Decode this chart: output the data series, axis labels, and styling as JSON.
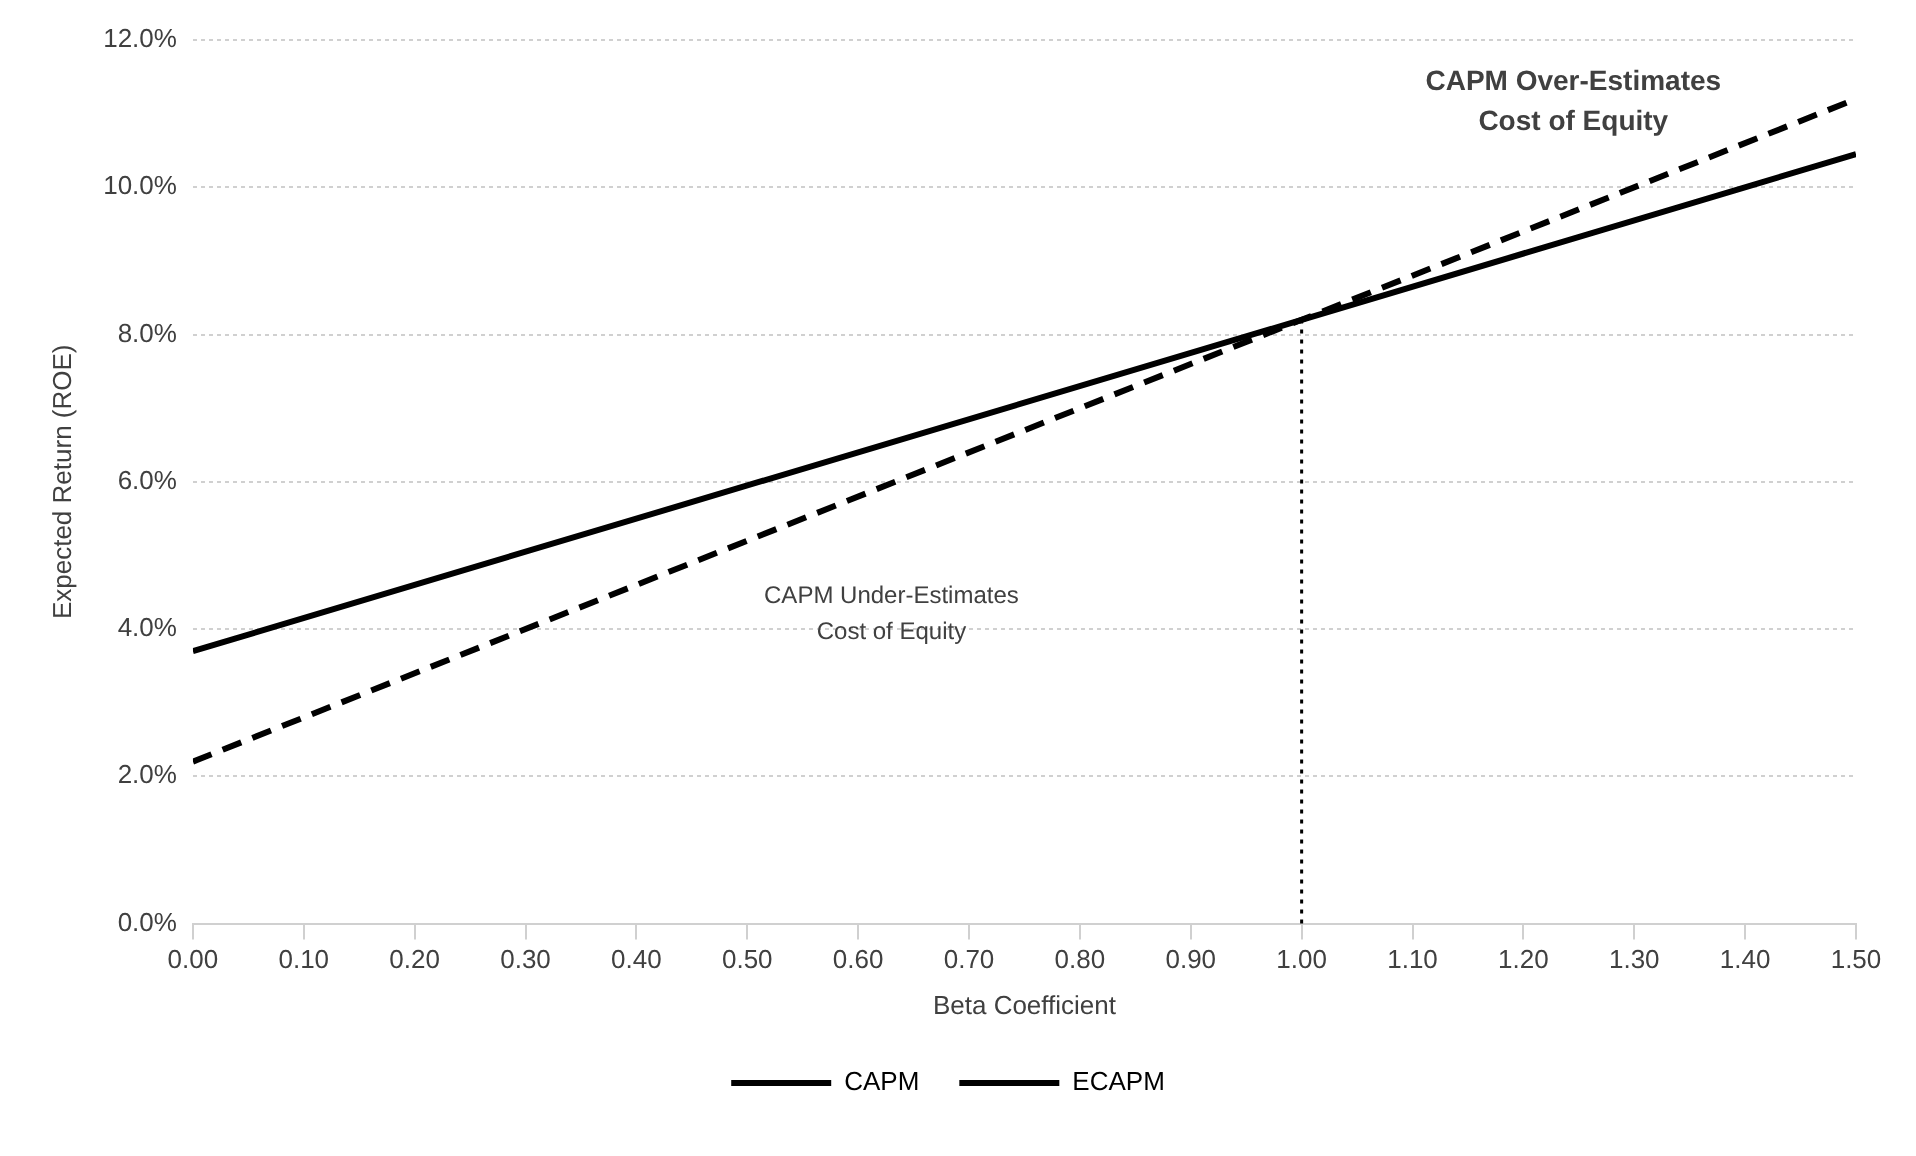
{
  "chart_data": {
    "type": "line",
    "xlabel": "Beta Coefficient",
    "ylabel": "Expected Return (ROE)",
    "x": [
      0,
      0.5,
      1,
      1.5
    ],
    "series": [
      {
        "name": "CAPM",
        "color": "#000000",
        "values": [
          2.2,
          5.2,
          8.2,
          11.2
        ],
        "line_style": "dashed"
      },
      {
        "name": "ECAPM",
        "color": "#000000",
        "values": [
          3.7,
          5.95,
          8.2,
          10.45
        ],
        "line_style": "solid"
      }
    ],
    "xlim": [
      0,
      1.5
    ],
    "xticks": [
      {
        "value": 0,
        "label": "0.00"
      },
      {
        "value": 0.1,
        "label": "0.10"
      },
      {
        "value": 0.2,
        "label": "0.20"
      },
      {
        "value": 0.3,
        "label": "0.30"
      },
      {
        "value": 0.4,
        "label": "0.40"
      },
      {
        "value": 0.5,
        "label": "0.50"
      },
      {
        "value": 0.6,
        "label": "0.60"
      },
      {
        "value": 0.7,
        "label": "0.70"
      },
      {
        "value": 0.8,
        "label": "0.80"
      },
      {
        "value": 0.9,
        "label": "0.90"
      },
      {
        "value": 1,
        "label": "1.00"
      },
      {
        "value": 1.1,
        "label": "1.10"
      },
      {
        "value": 1.2,
        "label": "1.20"
      },
      {
        "value": 1.3,
        "label": "1.30"
      },
      {
        "value": 1.4,
        "label": "1.40"
      },
      {
        "value": 1.5,
        "label": "1.50"
      }
    ],
    "ylim": [
      0,
      12
    ],
    "yticks": [
      {
        "value": 0,
        "label": "0.0%"
      },
      {
        "value": 2,
        "label": "2.0%"
      },
      {
        "value": 4,
        "label": "4.0%"
      },
      {
        "value": 6,
        "label": "6.0%"
      },
      {
        "value": 8,
        "label": "8.0%"
      },
      {
        "value": 10,
        "label": "10.0%"
      },
      {
        "value": 12,
        "label": "12.0%"
      }
    ],
    "ref_lines": [
      {
        "axis": "x",
        "value": 1,
        "line_style": "dotted",
        "color": "#000000"
      }
    ],
    "annotations": [
      "CAPM Over-Estimates\nCost of Equity",
      "CAPM Under-Estimates\nCost of Equity"
    ],
    "grid": "y",
    "legend": "bottom",
    "marker": "none"
  }
}
